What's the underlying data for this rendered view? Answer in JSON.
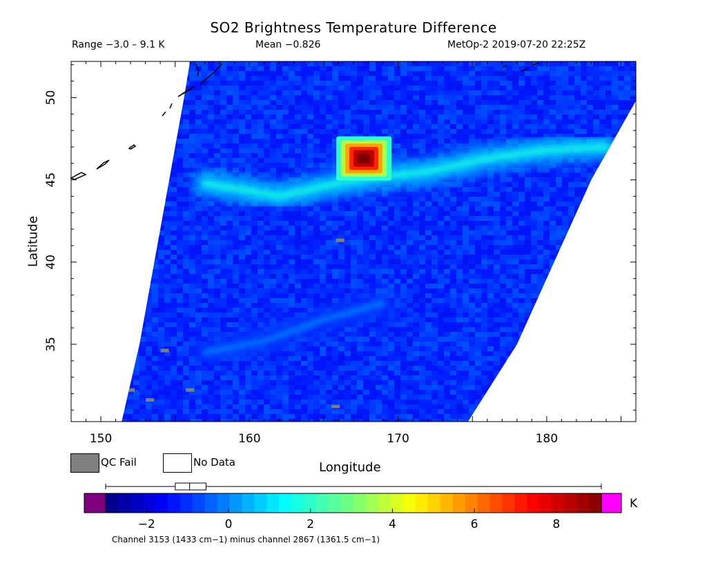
{
  "header": {
    "title": "SO2 Brightness Temperature Difference",
    "range": "Range −3.0 – 9.1 K",
    "mean": "Mean −0.826",
    "satellite": "MetOp-2 2019-07-20 22:25Z"
  },
  "legend": {
    "qc_fail": "QC Fail",
    "no_data": "No Data"
  },
  "footnote": "Channel 3153 (1433 cm−1) minus channel 2867 (1361.5 cm−1)",
  "colorbar": {
    "unit": "K",
    "min": -3.0,
    "max": 9.1,
    "ticks": [
      -2,
      0,
      2,
      4,
      6,
      8
    ],
    "tick_labels": [
      "−2",
      "0",
      "2",
      "4",
      "6",
      "8"
    ],
    "under_color": "#7f007f",
    "over_color": "#ff00ff",
    "box_stats": {
      "whisker_min": -3.0,
      "q1": -1.3,
      "median": -0.95,
      "q3": -0.55,
      "whisker_max": 9.1
    }
  },
  "chart_data": {
    "type": "heatmap",
    "title": "SO2 Brightness Temperature Difference",
    "xlabel": "Longitude",
    "ylabel": "Latitude",
    "xlim": [
      148,
      186
    ],
    "ylim": [
      30.3,
      52.2
    ],
    "x_ticks": [
      150,
      160,
      170,
      180
    ],
    "x_tick_labels": [
      "150",
      "160",
      "170",
      "180"
    ],
    "y_ticks": [
      35,
      40,
      45,
      50
    ],
    "y_tick_labels": [
      "35",
      "40",
      "45",
      "50"
    ],
    "value_unit": "K",
    "swath": {
      "left_edge": [
        [
          151.4,
          30.3
        ],
        [
          152.6,
          35.0
        ],
        [
          153.6,
          40.0
        ],
        [
          154.6,
          45.0
        ],
        [
          155.6,
          50.0
        ],
        [
          156.0,
          52.2
        ]
      ],
      "right_edge": [
        [
          174.7,
          30.3
        ],
        [
          178.0,
          35.0
        ],
        [
          180.5,
          40.0
        ],
        [
          183.0,
          45.0
        ],
        [
          186.0,
          49.8
        ],
        [
          186.0,
          52.2
        ]
      ]
    },
    "features": [
      {
        "name": "so2_plume_peak",
        "lon": 167.7,
        "lat": 46.3,
        "value": 9.1
      },
      {
        "name": "elevated_band",
        "points": [
          [
            157.0,
            44.8
          ],
          [
            162.0,
            44.0
          ],
          [
            167.0,
            45.0
          ],
          [
            172.0,
            45.5
          ],
          [
            176.0,
            46.3
          ],
          [
            180.0,
            46.8
          ],
          [
            184.0,
            47.0
          ]
        ],
        "value": 1.8
      },
      {
        "name": "lower_band",
        "points": [
          [
            157.0,
            34.5
          ],
          [
            161.0,
            35.2
          ],
          [
            165.0,
            36.5
          ],
          [
            169.0,
            37.5
          ]
        ],
        "value": 0.0
      }
    ],
    "background_value": -1.0,
    "qc_fail_points": [
      [
        166.1,
        41.3
      ],
      [
        154.3,
        34.6
      ],
      [
        152.0,
        32.2
      ],
      [
        153.3,
        31.6
      ],
      [
        156.0,
        32.2
      ],
      [
        165.8,
        31.2
      ]
    ],
    "colors": {
      "coastline": "#000000",
      "frame": "#000000"
    }
  }
}
